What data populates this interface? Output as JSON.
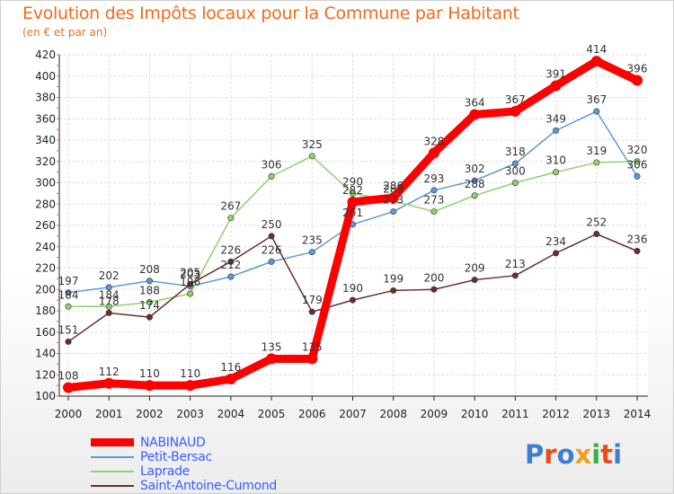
{
  "header": {
    "title": "Evolution des Impôts locaux pour la Commune par Habitant",
    "subtitle": "(en € et par an)"
  },
  "logo": {
    "text": "Proxiti",
    "colors": [
      "#3a7fd0",
      "#e84c1c",
      "#3a7fd0",
      "#f0a020",
      "#3ab040",
      "#e84c1c",
      "#3a7fd0"
    ]
  },
  "chart_data": {
    "type": "line",
    "title": "Evolution des Impôts locaux pour la Commune par Habitant",
    "subtitle": "(en € et par an)",
    "x": [
      2000,
      2001,
      2002,
      2003,
      2004,
      2005,
      2006,
      2007,
      2008,
      2009,
      2010,
      2011,
      2012,
      2013,
      2014
    ],
    "ylim": [
      100,
      420
    ],
    "yticks": [
      100,
      120,
      140,
      160,
      180,
      200,
      220,
      240,
      260,
      280,
      300,
      320,
      340,
      360,
      380,
      400,
      420
    ],
    "grid": true,
    "legend": "bottom-left",
    "series": [
      {
        "name": "NABINAUD",
        "color": "#ff0000",
        "values": [
          108,
          112,
          110,
          110,
          116,
          135,
          135,
          282,
          286,
          328,
          364,
          367,
          391,
          414,
          396
        ],
        "labels": [
          "108",
          "112",
          "110",
          "110",
          "116",
          "135",
          "135",
          "282",
          "286",
          "328",
          "364",
          "367",
          "391",
          "414",
          "396"
        ]
      },
      {
        "name": "Petit-Bersac",
        "color": "#5b9bd5",
        "values": [
          197,
          202,
          208,
          203,
          212,
          226,
          235,
          261,
          273,
          293,
          302,
          318,
          349,
          367,
          306
        ],
        "labels": [
          "197",
          "202",
          "208",
          "203",
          "212",
          "226",
          "235",
          "261",
          "273",
          "293",
          "302",
          "318",
          "349",
          "367",
          "306"
        ]
      },
      {
        "name": "Laprade",
        "color": "#8fd16a",
        "values": [
          184,
          184,
          188,
          196,
          267,
          306,
          325,
          290,
          283,
          273,
          288,
          300,
          310,
          319,
          320
        ],
        "labels": [
          "184",
          "184",
          "188",
          "196",
          "267",
          "306",
          "325",
          "290",
          "283",
          "273",
          "288",
          "300",
          "310",
          "319",
          "320"
        ]
      },
      {
        "name": "Saint-Antoine-Cumond",
        "color": "#6b2d2d",
        "values": [
          151,
          178,
          174,
          205,
          226,
          250,
          179,
          190,
          199,
          200,
          209,
          213,
          234,
          252,
          236
        ],
        "labels": [
          "151",
          "178",
          "174",
          "205",
          "226",
          "250",
          "179",
          "190",
          "199",
          "200",
          "209",
          "213",
          "234",
          "252",
          "236"
        ]
      }
    ]
  }
}
